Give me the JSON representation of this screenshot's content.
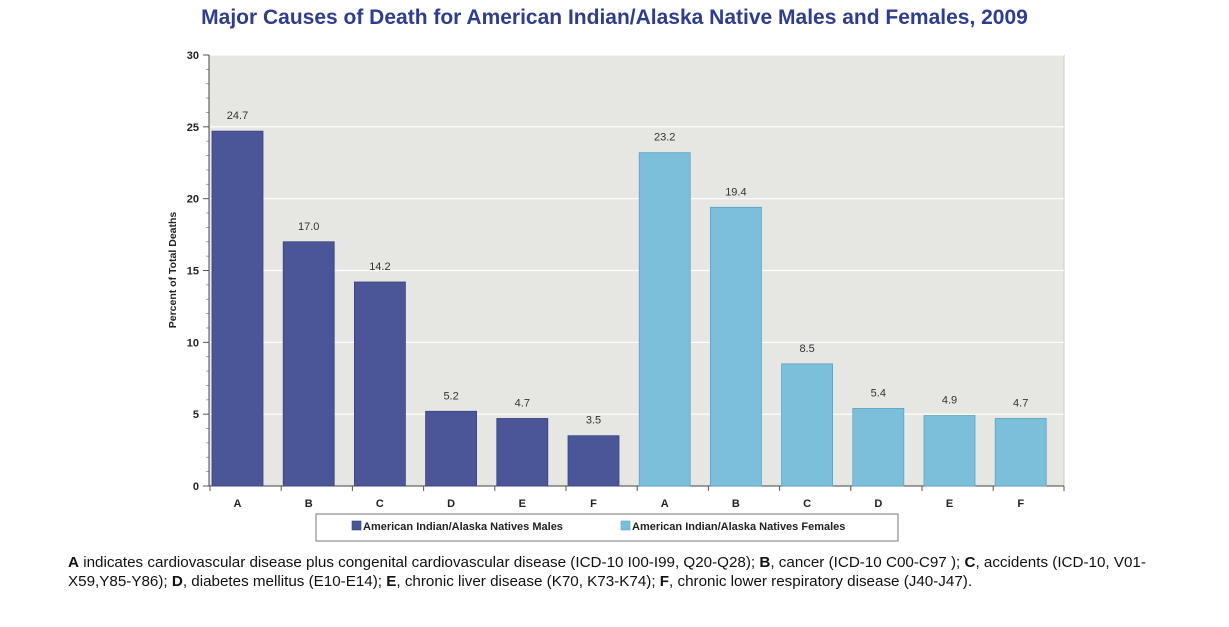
{
  "chart_data": {
    "type": "bar",
    "title": "Major Causes of Death for American Indian/Alaska Native Males and Females, 2009",
    "ylabel": "Percent of Total Deaths",
    "xlabel": "",
    "ylim": [
      0,
      30
    ],
    "yticks": [
      0,
      5,
      10,
      15,
      20,
      25,
      30
    ],
    "grid": true,
    "legend_position": "bottom",
    "series": [
      {
        "name": "American Indian/Alaska Natives Males",
        "color": "#4b5698",
        "categories": [
          "A",
          "B",
          "C",
          "D",
          "E",
          "F"
        ],
        "values": [
          24.7,
          17.0,
          14.2,
          5.2,
          4.7,
          3.5
        ],
        "labels": [
          "24.7",
          "17.0",
          "14.2",
          "5.2",
          "4.7",
          "3.5"
        ]
      },
      {
        "name": "American Indian/Alaska Natives Females",
        "color": "#7cbfdb",
        "categories": [
          "A",
          "B",
          "C",
          "D",
          "E",
          "F"
        ],
        "values": [
          23.2,
          19.4,
          8.5,
          5.4,
          4.9,
          4.7
        ],
        "labels": [
          "23.2",
          "19.4",
          "8.5",
          "5.4",
          "4.9",
          "4.7"
        ]
      }
    ]
  },
  "footnote": [
    {
      "key": "A",
      "text": " indicates cardiovascular disease plus congenital cardiovascular disease (ICD-10 I00-I99, Q20-Q28); "
    },
    {
      "key": "B",
      "text": ", cancer (ICD-10 C00-C97 ); "
    },
    {
      "key": "C",
      "text": ", accidents (ICD-10, V01-X59,Y85-Y86); "
    },
    {
      "key": "D",
      "text": ", diabetes mellitus (E10-E14); "
    },
    {
      "key": "E",
      "text": ", chronic liver disease (K70, K73-K74); "
    },
    {
      "key": "F",
      "text": ", chronic lower respiratory disease (J40-J47)."
    }
  ]
}
